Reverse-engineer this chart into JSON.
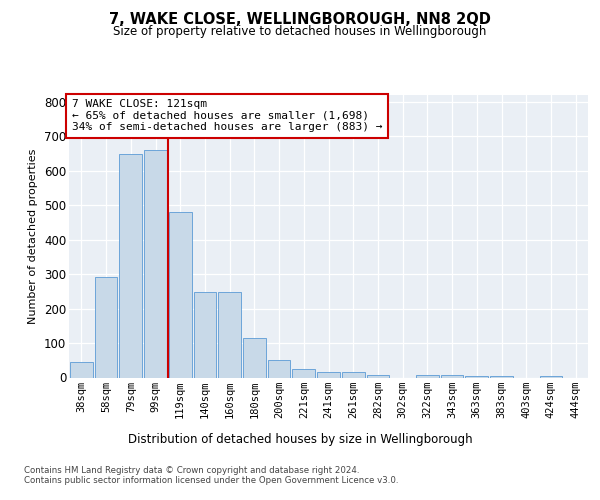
{
  "title": "7, WAKE CLOSE, WELLINGBOROUGH, NN8 2QD",
  "subtitle": "Size of property relative to detached houses in Wellingborough",
  "xlabel": "Distribution of detached houses by size in Wellingborough",
  "ylabel": "Number of detached properties",
  "bar_labels": [
    "38sqm",
    "58sqm",
    "79sqm",
    "99sqm",
    "119sqm",
    "140sqm",
    "160sqm",
    "180sqm",
    "200sqm",
    "221sqm",
    "241sqm",
    "261sqm",
    "282sqm",
    "302sqm",
    "322sqm",
    "343sqm",
    "363sqm",
    "383sqm",
    "403sqm",
    "424sqm",
    "444sqm"
  ],
  "bar_heights": [
    45,
    292,
    650,
    660,
    480,
    248,
    248,
    115,
    50,
    25,
    15,
    15,
    8,
    0,
    8,
    8,
    5,
    5,
    0,
    5,
    0
  ],
  "bar_color": "#c8d9e8",
  "bar_edge_color": "#5b9bd5",
  "vline_color": "#cc0000",
  "annotation_line1": "7 WAKE CLOSE: 121sqm",
  "annotation_line2": "← 65% of detached houses are smaller (1,698)",
  "annotation_line3": "34% of semi-detached houses are larger (883) →",
  "annotation_box_color": "#ffffff",
  "annotation_box_edge": "#cc0000",
  "ylim": [
    0,
    820
  ],
  "yticks": [
    0,
    100,
    200,
    300,
    400,
    500,
    600,
    700,
    800
  ],
  "plot_bg_color": "#eaeff5",
  "footer_line1": "Contains HM Land Registry data © Crown copyright and database right 2024.",
  "footer_line2": "Contains public sector information licensed under the Open Government Licence v3.0."
}
